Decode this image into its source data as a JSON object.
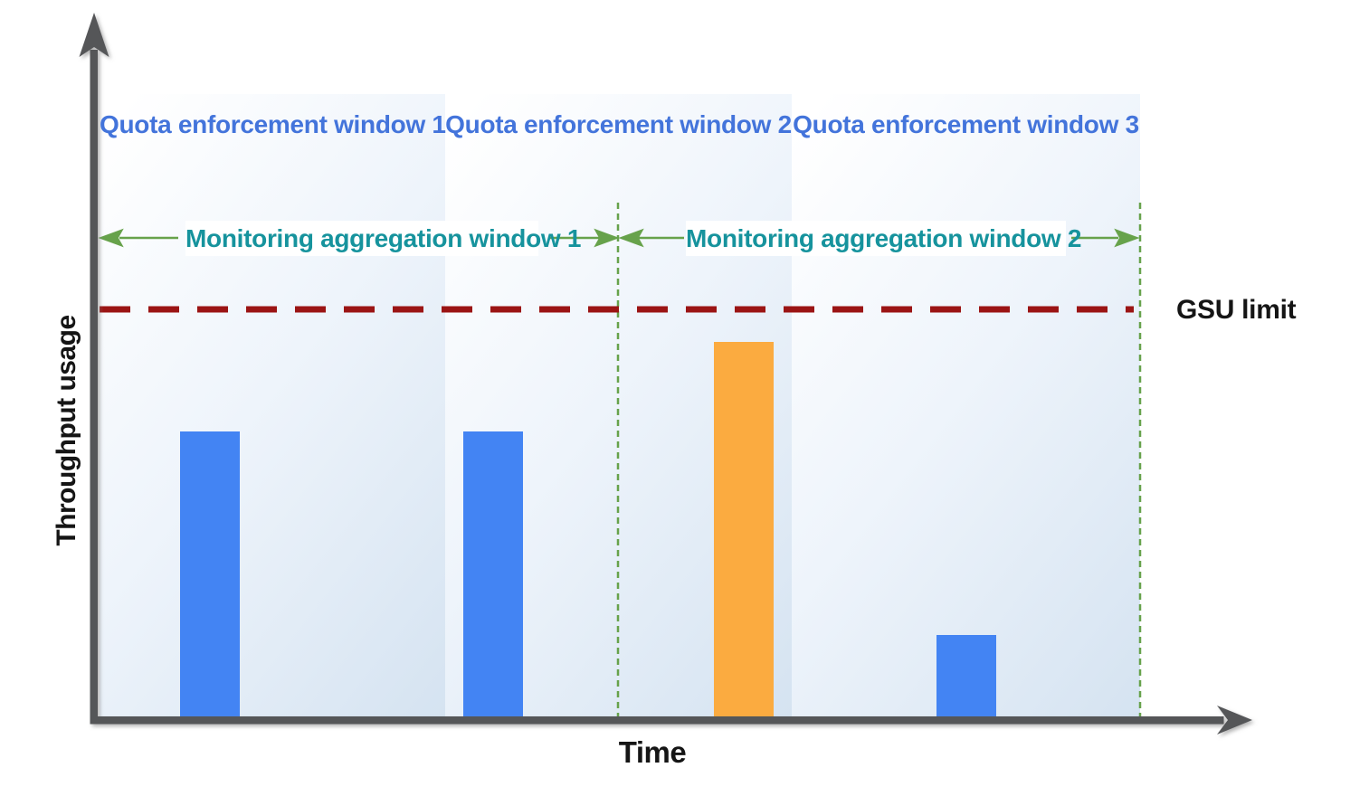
{
  "y_axis_label": "Throughput usage",
  "x_axis_label": "Time",
  "gsu_limit_label": "GSU limit",
  "quota_windows": [
    {
      "label": "Quota enforcement window 1"
    },
    {
      "label": "Quota enforcement window 2"
    },
    {
      "label": "Quota enforcement window 3"
    }
  ],
  "monitoring_windows": [
    {
      "label": "Monitoring aggregation window 1"
    },
    {
      "label": "Monitoring aggregation window 2"
    }
  ],
  "colors": {
    "bar_blue": "#4384f3",
    "bar_orange": "#fbab40",
    "quota_label_blue": "#4374db",
    "monitoring_label_teal": "#16939d",
    "monitoring_green": "#67a24b",
    "gsu_limit_red": "#9b1414",
    "axis_gray": "#555659",
    "band_fill_light": "#ffffff",
    "band_fill_dark": "#d5e3f1"
  },
  "chart_data": {
    "type": "bar",
    "title": "",
    "xlabel": "Time",
    "ylabel": "Throughput usage",
    "value_units": "relative throughput, GSU limit = 1.0 (no numeric ticks shown)",
    "grid": false,
    "legend": "none",
    "reference_lines": [
      {
        "label": "GSU limit",
        "value": 1.0,
        "style": "dashed",
        "color": "#9b1414",
        "orientation": "horizontal"
      }
    ],
    "region_annotations": {
      "quota_enforcement_windows": [
        "Quota enforcement window 1",
        "Quota enforcement window 2",
        "Quota enforcement window 3"
      ],
      "monitoring_aggregation_windows": [
        "Monitoring aggregation window 1",
        "Monitoring aggregation window 2"
      ],
      "monitoring_boundaries_style": "green dashed vertical lines with green double-headed arrows"
    },
    "bars": [
      {
        "x_region": "Quota enforcement window 1 / Monitoring aggregation window 1",
        "value": 0.7,
        "color": "#4384f3"
      },
      {
        "x_region": "Quota enforcement window 2 / Monitoring aggregation window 1",
        "value": 0.7,
        "color": "#4384f3"
      },
      {
        "x_region": "Quota enforcement window 2 / Monitoring aggregation window 2",
        "value": 0.92,
        "color": "#fbab40"
      },
      {
        "x_region": "Quota enforcement window 3 / Monitoring aggregation window 2",
        "value": 0.2,
        "color": "#4384f3"
      }
    ]
  }
}
